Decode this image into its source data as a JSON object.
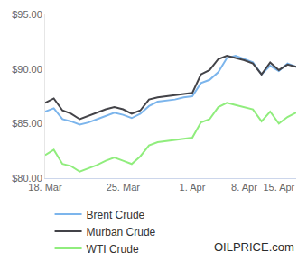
{
  "chart_data": {
    "type": "line",
    "categories": [
      "18. Mar",
      null,
      null,
      null,
      null,
      null,
      null,
      null,
      null,
      "25. Mar",
      null,
      null,
      null,
      null,
      null,
      null,
      null,
      "1. Apr",
      null,
      null,
      null,
      null,
      null,
      "8. Apr",
      null,
      null,
      null,
      "15. Apr",
      null,
      null
    ],
    "series": [
      {
        "name": "Brent Crude",
        "color": "#7cb5ec",
        "values": [
          86.1,
          86.4,
          85.4,
          85.2,
          84.9,
          85.1,
          85.4,
          85.7,
          86.0,
          85.8,
          85.5,
          85.9,
          86.6,
          87.0,
          87.1,
          87.2,
          87.4,
          87.5,
          88.7,
          89.0,
          89.7,
          91.0,
          91.2,
          90.9,
          90.6,
          89.5,
          90.3,
          89.8,
          90.5,
          90.2
        ]
      },
      {
        "name": "Murban Crude",
        "color": "#434348",
        "values": [
          86.9,
          87.3,
          86.2,
          85.9,
          85.4,
          85.7,
          86.0,
          86.3,
          86.5,
          86.3,
          85.9,
          86.2,
          87.2,
          87.4,
          87.5,
          87.6,
          87.7,
          87.8,
          89.5,
          89.9,
          90.9,
          91.2,
          91.0,
          90.8,
          90.5,
          89.5,
          90.6,
          89.9,
          90.4,
          90.2
        ]
      },
      {
        "name": "WTI Crude",
        "color": "#90ed7d",
        "values": [
          82.1,
          82.6,
          81.3,
          81.1,
          80.6,
          80.9,
          81.2,
          81.6,
          81.9,
          81.6,
          81.3,
          82.0,
          83.0,
          83.3,
          83.4,
          83.5,
          83.6,
          83.7,
          85.1,
          85.4,
          86.5,
          86.9,
          86.7,
          86.5,
          86.3,
          85.2,
          86.1,
          85.0,
          85.6,
          86.0
        ]
      }
    ],
    "ylim": [
      80,
      95
    ],
    "yticks": [
      {
        "value": 80,
        "label": "$80.00"
      },
      {
        "value": 85,
        "label": "$85.00"
      },
      {
        "value": 90,
        "label": "$90.00"
      },
      {
        "value": 95,
        "label": "$95.00"
      }
    ],
    "grid": false,
    "legend": "bottom",
    "annotations": [
      "OILPRICE.com"
    ]
  }
}
